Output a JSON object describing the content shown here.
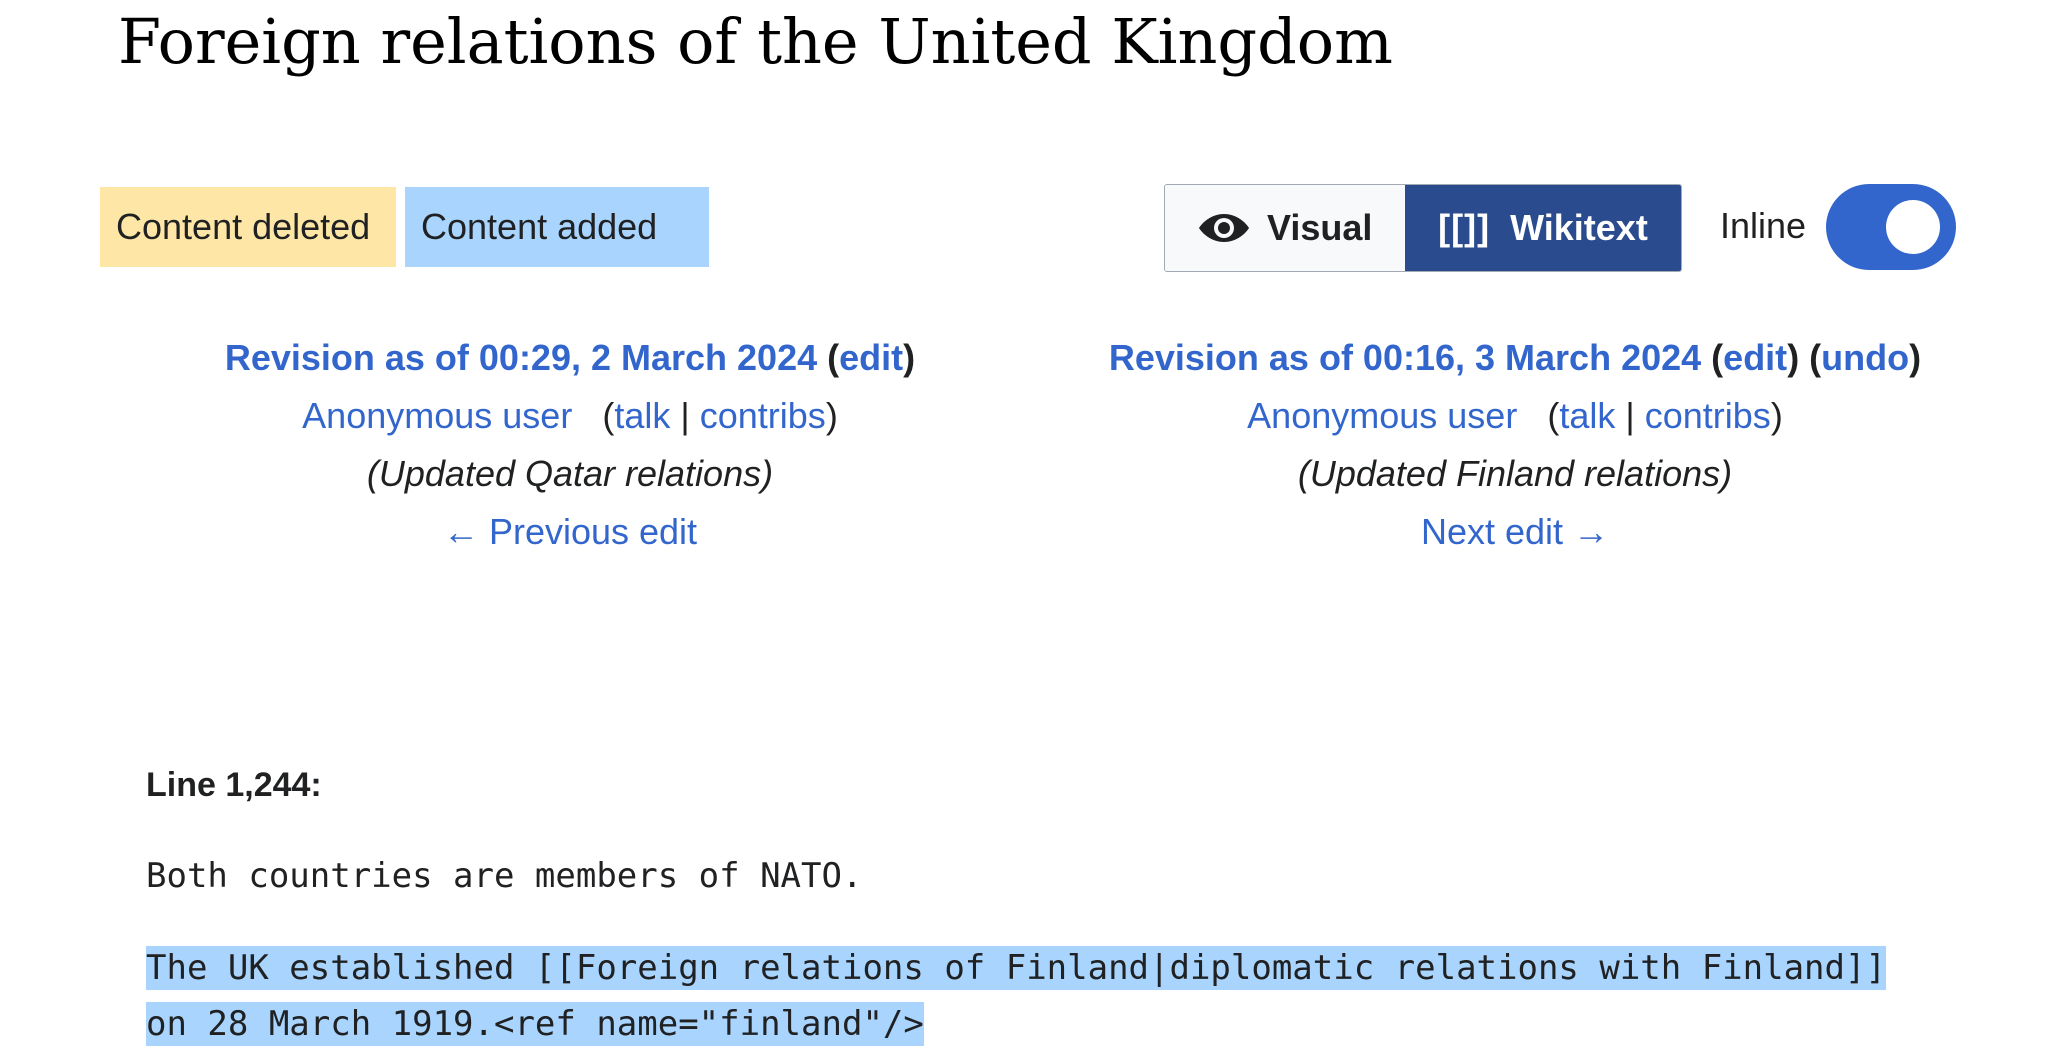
{
  "page": {
    "title": "Foreign relations of the United Kingdom"
  },
  "legend": {
    "deleted": "Content deleted",
    "added": "Content added"
  },
  "view_toggle": {
    "visual_label": "Visual",
    "wikitext_icon": "[[]]",
    "wikitext_label": "Wikitext",
    "selected": "Wikitext"
  },
  "inline_toggle": {
    "label": "Inline",
    "on": true
  },
  "old_revision": {
    "title": "Revision as of 00:29, 2 March 2024",
    "open_paren": "(",
    "edit": "edit",
    "close_paren": ")",
    "user": "Anonymous user",
    "talk_open": "(",
    "talk": "talk",
    "sep": "|",
    "contribs": "contribs",
    "talk_close": ")",
    "summary": "(Updated Qatar relations)",
    "nav": "← Previous edit"
  },
  "new_revision": {
    "title": "Revision as of 00:16, 3 March 2024",
    "open_paren": "(",
    "edit": "edit",
    "between": ") (",
    "undo": "undo",
    "close_paren": ")",
    "user": "Anonymous user",
    "talk_open": "(",
    "talk": "talk",
    "sep": "|",
    "contribs": "contribs",
    "talk_close": ")",
    "summary": "(Updated Finland relations)",
    "nav": "Next edit →"
  },
  "diff": {
    "line_label": "Line 1,244:",
    "context_line": "Both countries are members of NATO.",
    "added_lines": [
      "The UK established [[Foreign relations of Finland|diplomatic relations with Finland]]",
      "on 28 March 1919.<ref name=\"finland\"/>"
    ]
  },
  "colors": {
    "deleted_bg": "#fee7a6",
    "added_bg": "#a8d4fe",
    "link": "#3366cc",
    "toggle_selected": "#2a4b8d",
    "switch_on": "#3366cc"
  },
  "icons": {
    "visual": "eye-icon"
  }
}
